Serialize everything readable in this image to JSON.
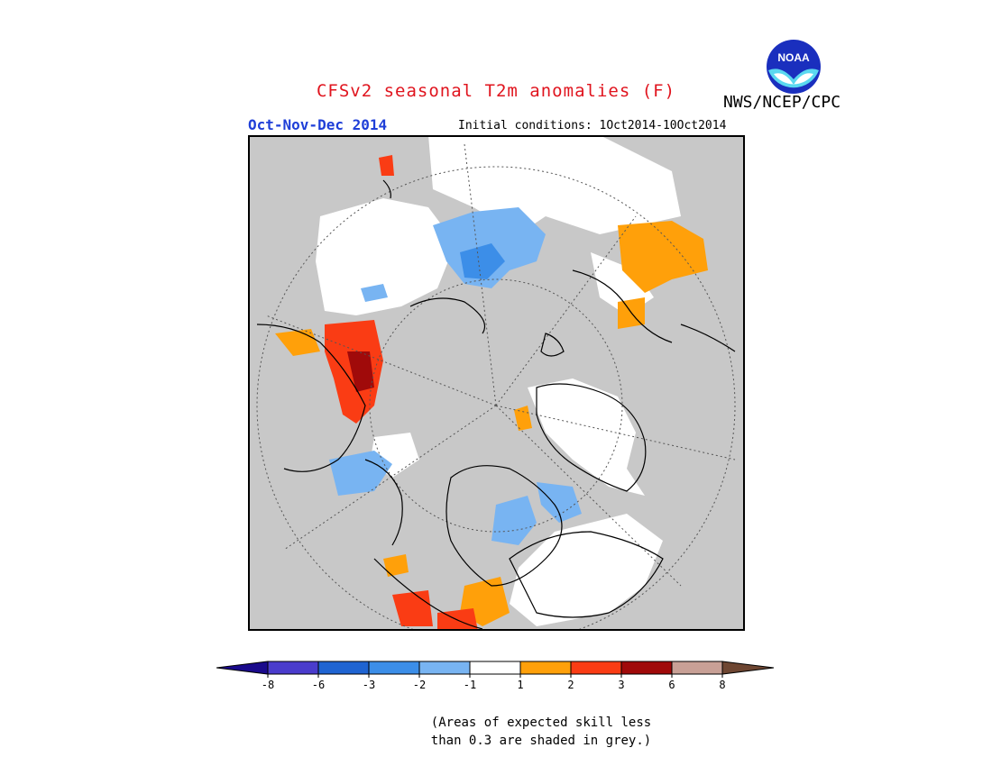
{
  "header": {
    "title": "CFSv2 seasonal T2m anomalies (F)",
    "organization": "NWS/NCEP/CPC",
    "logo_text": "NOAA",
    "season": "Oct-Nov-Dec 2014",
    "initial_conditions": "Initial conditions: 1Oct2014-10Oct2014"
  },
  "colors": {
    "title": "#e0141e",
    "season": "#1f3fd8",
    "grey_mask": "#c8c8c8",
    "land_outline": "#000000"
  },
  "colorbar": {
    "labels": [
      "-8",
      "-6",
      "-3",
      "-2",
      "-1",
      "1",
      "2",
      "3",
      "6",
      "8"
    ],
    "colors": [
      "#1a0a8c",
      "#4a3ccc",
      "#1f64d2",
      "#3c8ee8",
      "#78b4f2",
      "#ffffff",
      "#ffa00a",
      "#fa3c14",
      "#a00a0a",
      "#c8a096",
      "#6e4632"
    ]
  },
  "note": {
    "line1": "(Areas of expected skill less",
    "line2": "than 0.3 are shaded in grey.)"
  }
}
